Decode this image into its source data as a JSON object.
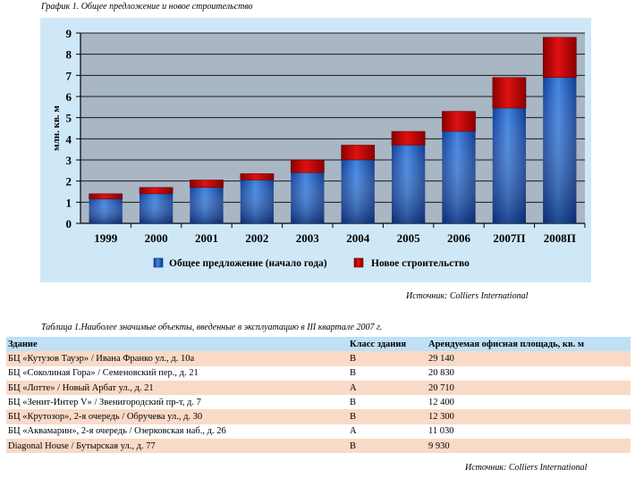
{
  "chart_title": "График 1. Общее предложение и новое строительство",
  "chart_source": "Источник: Colliers International",
  "chart_data": {
    "type": "bar",
    "stacked": true,
    "ylabel": "млн. кв. м",
    "ylim": [
      0,
      9
    ],
    "yticks": [
      "0",
      "1",
      "2",
      "3",
      "4",
      "5",
      "6",
      "7",
      "8",
      "9"
    ],
    "grid": true,
    "legend_position": "bottom",
    "categories": [
      "1999",
      "2000",
      "2001",
      "2002",
      "2003",
      "2004",
      "2005",
      "2006",
      "2007П",
      "2008П"
    ],
    "series": [
      {
        "name": "Общее предложение (начало года)",
        "color": "#1f5bbf",
        "values": [
          1.15,
          1.4,
          1.7,
          2.05,
          2.4,
          3.0,
          3.7,
          4.35,
          5.45,
          6.9
        ]
      },
      {
        "name": "Новое строительство",
        "color": "#c80000",
        "values": [
          0.25,
          0.3,
          0.35,
          0.3,
          0.6,
          0.7,
          0.65,
          0.95,
          1.45,
          1.9
        ]
      }
    ]
  },
  "table_title": "Таблица 1.Наиболее значимые объекты, введенные в эксплуатацию в III квартале 2007 г.",
  "table": {
    "headers": [
      "Здание",
      "Класс здания",
      "Арендуемая офисная площадь, кв. м"
    ],
    "rows": [
      [
        "БЦ «Кутузов Тауэр» / Ивана Франко ул., д. 10а",
        "B",
        "29 140"
      ],
      [
        "БЦ «Соколиная Гора» / Семеновский пер., д. 21",
        "B",
        "20 830"
      ],
      [
        "БЦ «Лотте» / Новый Арбат ул., д. 21",
        "A",
        "20 710"
      ],
      [
        "БЦ «Зенит-Интер V» / Звенигородский пр-т, д. 7",
        "B",
        "12 400"
      ],
      [
        "БЦ «Крутозор», 2-я очередь / Обручева ул., д. 30",
        "B",
        "12 300"
      ],
      [
        "БЦ «Аквамарин», 2-я очередь / Озерковская наб., д. 26",
        "A",
        "11 030"
      ],
      [
        "Diagonal House / Бутырская ул., д. 77",
        "B",
        "9 930"
      ]
    ]
  },
  "table_source": "Источник: Colliers International"
}
